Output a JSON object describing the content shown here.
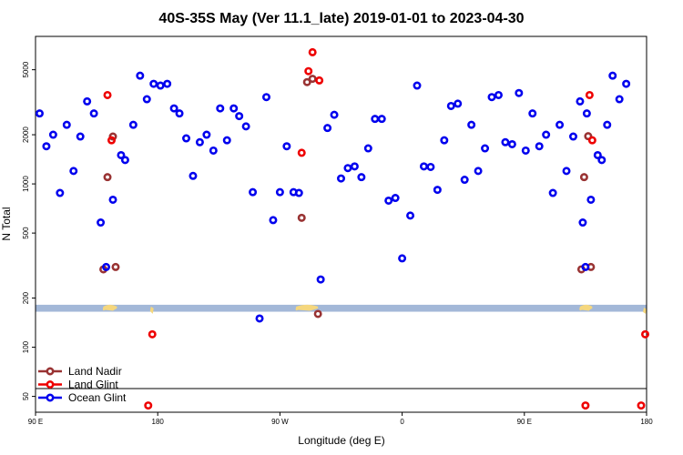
{
  "chart_data": {
    "type": "scatter",
    "title": "40S-35S May (Ver 11.1_late)   2019-01-01 to 2023-04-30",
    "xlabel": "Longitude (deg E)",
    "ylabel": "N Total",
    "x_ticks": [
      {
        "value": 90,
        "label": "90 E"
      },
      {
        "value": 180,
        "label": "180"
      },
      {
        "value": 270,
        "label": "90 W"
      },
      {
        "value": 360,
        "label": "0"
      },
      {
        "value": 450,
        "label": "90 E"
      },
      {
        "value": 540,
        "label": "180"
      }
    ],
    "y_ticks": [
      {
        "value": 50,
        "label": "50"
      },
      {
        "value": 100,
        "label": "100"
      },
      {
        "value": 200,
        "label": "200"
      },
      {
        "value": 500,
        "label": "500"
      },
      {
        "value": 1000,
        "label": "1000"
      },
      {
        "value": 2000,
        "label": "2000"
      },
      {
        "value": 5000,
        "label": "5000"
      }
    ],
    "xlim": [
      90,
      540
    ],
    "ylim": [
      40,
      8000
    ],
    "y_scale": "log",
    "legend_position": "bottom-left",
    "band": {
      "y_low": 165,
      "y_high": 182,
      "color": "#a3b8d8",
      "land_color": "#f5d77e"
    },
    "series": [
      {
        "name": "Land Nadir",
        "color": "#993333",
        "points": [
          [
            140,
            300
          ],
          [
            143,
            1100
          ],
          [
            147,
            1950
          ],
          [
            149,
            310
          ],
          [
            286,
            620
          ],
          [
            290,
            4200
          ],
          [
            294,
            4400
          ],
          [
            298,
            160
          ],
          [
            492,
            300
          ],
          [
            494,
            1100
          ],
          [
            497,
            1960
          ],
          [
            499,
            310
          ]
        ]
      },
      {
        "name": "Land Glint",
        "color": "#ee0000",
        "points": [
          [
            143,
            3500
          ],
          [
            146,
            1850
          ],
          [
            173,
            44
          ],
          [
            176,
            120
          ],
          [
            286,
            1550
          ],
          [
            291,
            4900
          ],
          [
            294,
            6400
          ],
          [
            299,
            4300
          ],
          [
            498,
            3500
          ],
          [
            500,
            1850
          ],
          [
            495,
            44
          ],
          [
            536,
            44
          ],
          [
            539,
            120
          ]
        ]
      },
      {
        "name": "Ocean Glint",
        "color": "#0000ee",
        "points": [
          [
            93,
            2700
          ],
          [
            98,
            1700
          ],
          [
            103,
            2000
          ],
          [
            108,
            880
          ],
          [
            113,
            2300
          ],
          [
            118,
            1200
          ],
          [
            123,
            1950
          ],
          [
            128,
            3200
          ],
          [
            133,
            2700
          ],
          [
            138,
            580
          ],
          [
            142,
            310
          ],
          [
            147,
            800
          ],
          [
            153,
            1500
          ],
          [
            156,
            1400
          ],
          [
            162,
            2300
          ],
          [
            167,
            4600
          ],
          [
            172,
            3300
          ],
          [
            177,
            4100
          ],
          [
            182,
            4000
          ],
          [
            187,
            4100
          ],
          [
            192,
            2900
          ],
          [
            196,
            2700
          ],
          [
            201,
            1900
          ],
          [
            206,
            1120
          ],
          [
            211,
            1800
          ],
          [
            216,
            2000
          ],
          [
            221,
            1600
          ],
          [
            226,
            2900
          ],
          [
            231,
            1850
          ],
          [
            236,
            2900
          ],
          [
            240,
            2600
          ],
          [
            245,
            2250
          ],
          [
            250,
            890
          ],
          [
            255,
            150
          ],
          [
            260,
            3400
          ],
          [
            265,
            600
          ],
          [
            270,
            890
          ],
          [
            275,
            1700
          ],
          [
            280,
            890
          ],
          [
            284,
            880
          ],
          [
            300,
            260
          ],
          [
            305,
            2200
          ],
          [
            310,
            2650
          ],
          [
            315,
            1080
          ],
          [
            320,
            1250
          ],
          [
            325,
            1280
          ],
          [
            330,
            1100
          ],
          [
            335,
            1650
          ],
          [
            340,
            2500
          ],
          [
            345,
            2500
          ],
          [
            350,
            790
          ],
          [
            355,
            820
          ],
          [
            360,
            350
          ],
          [
            366,
            640
          ],
          [
            371,
            4000
          ],
          [
            376,
            1280
          ],
          [
            381,
            1270
          ],
          [
            386,
            920
          ],
          [
            391,
            1850
          ],
          [
            396,
            3000
          ],
          [
            401,
            3100
          ],
          [
            406,
            1060
          ],
          [
            411,
            2300
          ],
          [
            416,
            1200
          ],
          [
            421,
            1650
          ],
          [
            426,
            3400
          ],
          [
            431,
            3500
          ],
          [
            436,
            1800
          ],
          [
            441,
            1750
          ],
          [
            446,
            3600
          ],
          [
            451,
            1600
          ],
          [
            456,
            2700
          ],
          [
            461,
            1700
          ],
          [
            466,
            2000
          ],
          [
            471,
            880
          ],
          [
            476,
            2300
          ],
          [
            481,
            1200
          ],
          [
            486,
            1950
          ],
          [
            491,
            3200
          ],
          [
            496,
            2700
          ],
          [
            493,
            580
          ],
          [
            495,
            310
          ],
          [
            499,
            800
          ],
          [
            504,
            1500
          ],
          [
            507,
            1400
          ],
          [
            511,
            2300
          ],
          [
            515,
            4600
          ],
          [
            520,
            3300
          ],
          [
            525,
            4100
          ]
        ]
      }
    ]
  }
}
